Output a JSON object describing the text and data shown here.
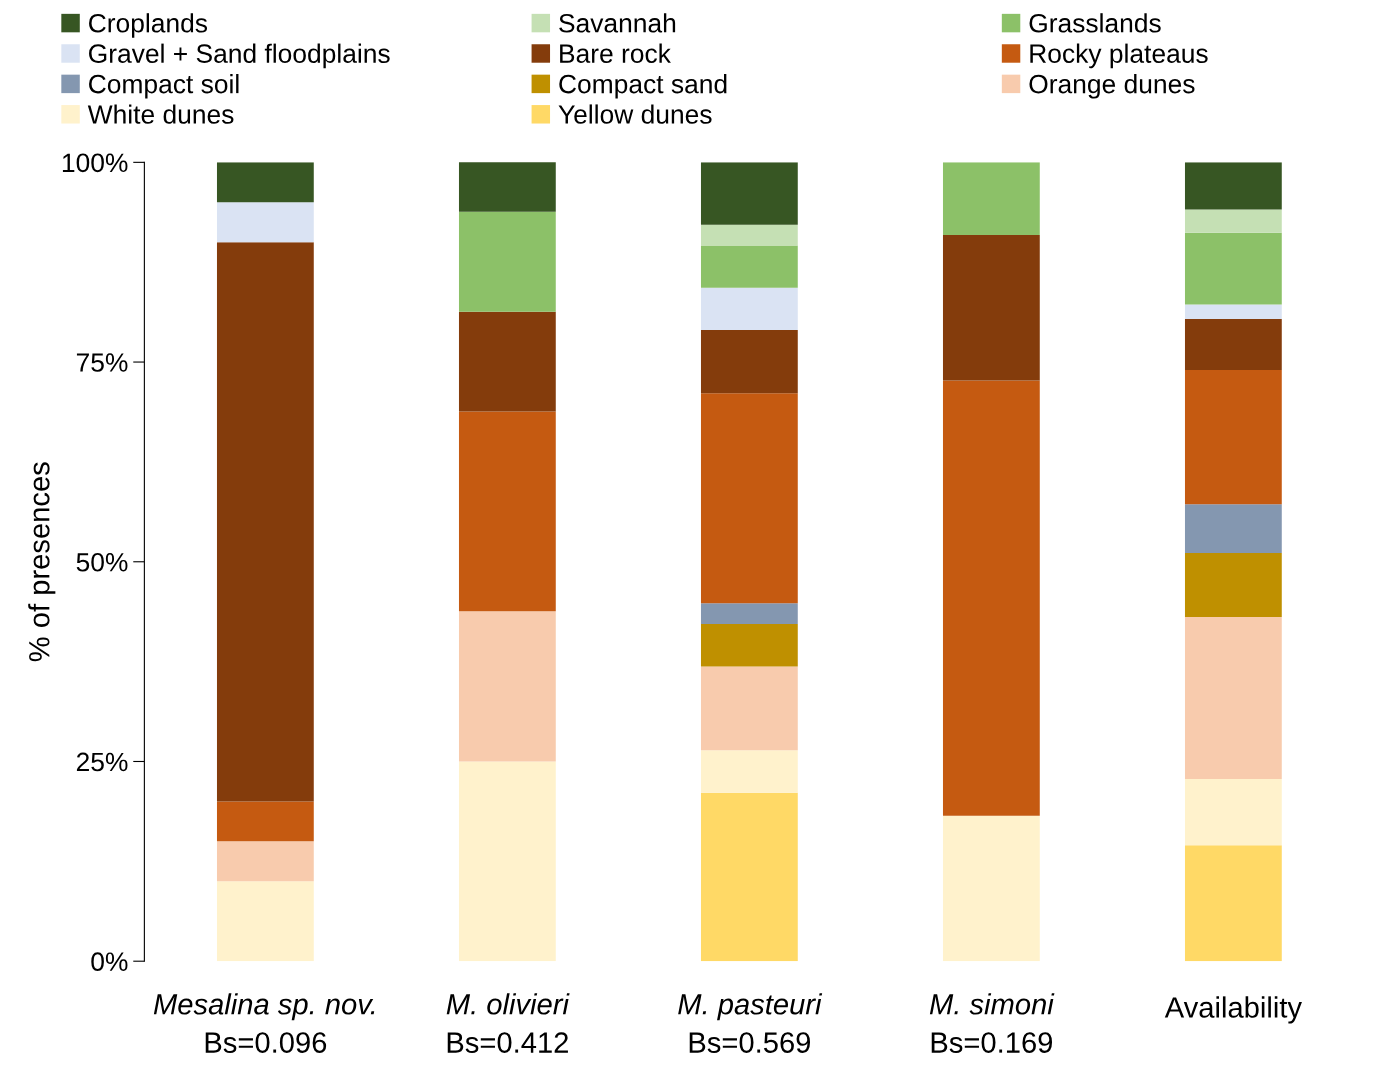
{
  "chart_data": {
    "type": "bar",
    "stacked": true,
    "ylabel": "% of presences",
    "categories": [
      "Mesalina sp. nov.\nBs=0.096",
      "M. olivieri\nBs=0.412",
      "M. pasteuri\nBs=0.569",
      "M. simoni\nBs=0.169",
      "Availability"
    ],
    "series": [
      {
        "name": "Yellow dunes",
        "color": "#ffd966",
        "values": [
          0,
          0,
          21.1,
          0,
          14.5
        ]
      },
      {
        "name": "White dunes",
        "color": "#fff2cc",
        "values": [
          10,
          25,
          5.3,
          18.2,
          8.3
        ]
      },
      {
        "name": "Orange dunes",
        "color": "#f8cbad",
        "values": [
          5,
          18.8,
          10.5,
          0,
          20.3
        ]
      },
      {
        "name": "Compact sand",
        "color": "#bf9000",
        "values": [
          0,
          0,
          5.3,
          0,
          8.0
        ]
      },
      {
        "name": "Compact soil",
        "color": "#8497b0",
        "values": [
          0,
          0,
          2.6,
          0,
          6.1
        ]
      },
      {
        "name": "Rocky plateaus",
        "color": "#c55a11",
        "values": [
          5,
          25,
          26.3,
          54.5,
          16.8
        ]
      },
      {
        "name": "Bare rock",
        "color": "#843c0c",
        "values": [
          70,
          12.5,
          7.9,
          18.2,
          6.4
        ]
      },
      {
        "name": "Gravel + Sand floodplains",
        "color": "#dae3f3",
        "values": [
          5,
          0,
          5.3,
          0,
          1.8
        ]
      },
      {
        "name": "Grasslands",
        "color": "#8cc168",
        "values": [
          0,
          12.5,
          5.3,
          9.1,
          9.0
        ]
      },
      {
        "name": "Savannah",
        "color": "#c5e0b4",
        "values": [
          0,
          0,
          2.6,
          0,
          2.9
        ]
      },
      {
        "name": "Croplands",
        "color": "#375623",
        "values": [
          5,
          6.3,
          7.8,
          0,
          5.9
        ]
      }
    ],
    "ylim": [
      0,
      100
    ],
    "yticks": [
      {
        "value": 0,
        "label": "0%"
      },
      {
        "value": 25,
        "label": "25%"
      },
      {
        "value": 50,
        "label": "50%"
      },
      {
        "value": 75,
        "label": "75%"
      },
      {
        "value": 100,
        "label": "100%"
      }
    ],
    "grid": false,
    "legend": "top"
  }
}
